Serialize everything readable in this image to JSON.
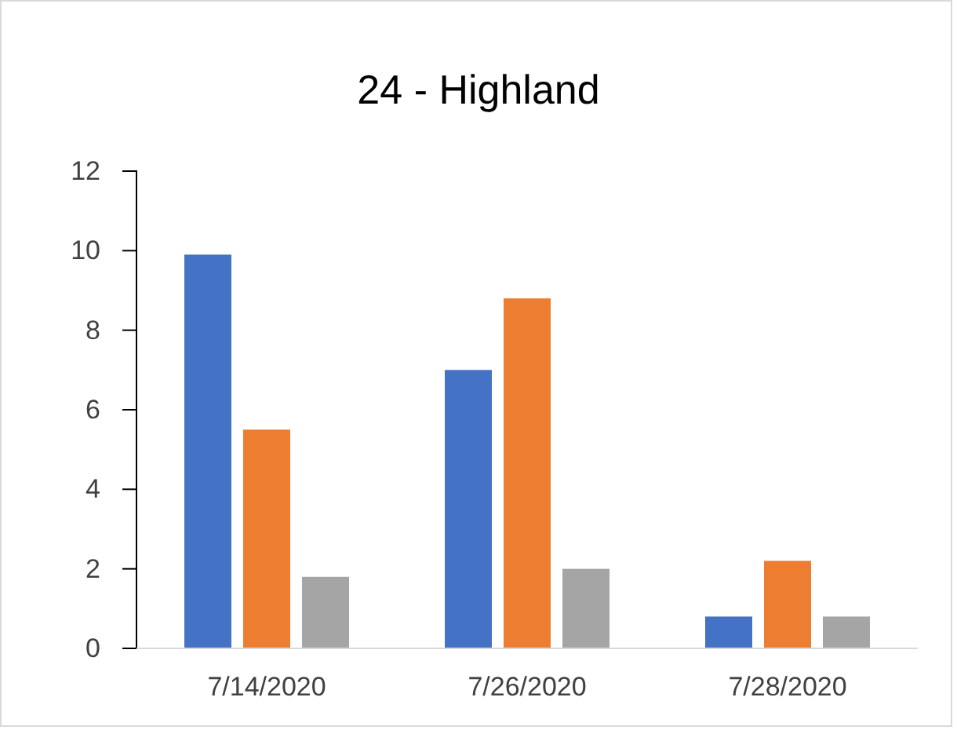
{
  "chart_data": {
    "type": "bar",
    "title": "24 - Highland",
    "categories": [
      "7/14/2020",
      "7/26/2020",
      "7/28/2020"
    ],
    "series": [
      {
        "color": "#4472c4",
        "values": [
          9.9,
          7.0,
          0.8
        ]
      },
      {
        "color": "#ed7d31",
        "values": [
          5.5,
          8.8,
          2.2
        ]
      },
      {
        "color": "#a5a5a5",
        "values": [
          1.8,
          2.0,
          0.8
        ]
      }
    ],
    "ylim": [
      0,
      12
    ],
    "yticks": [
      0,
      2,
      4,
      6,
      8,
      10,
      12
    ],
    "grid": false
  }
}
